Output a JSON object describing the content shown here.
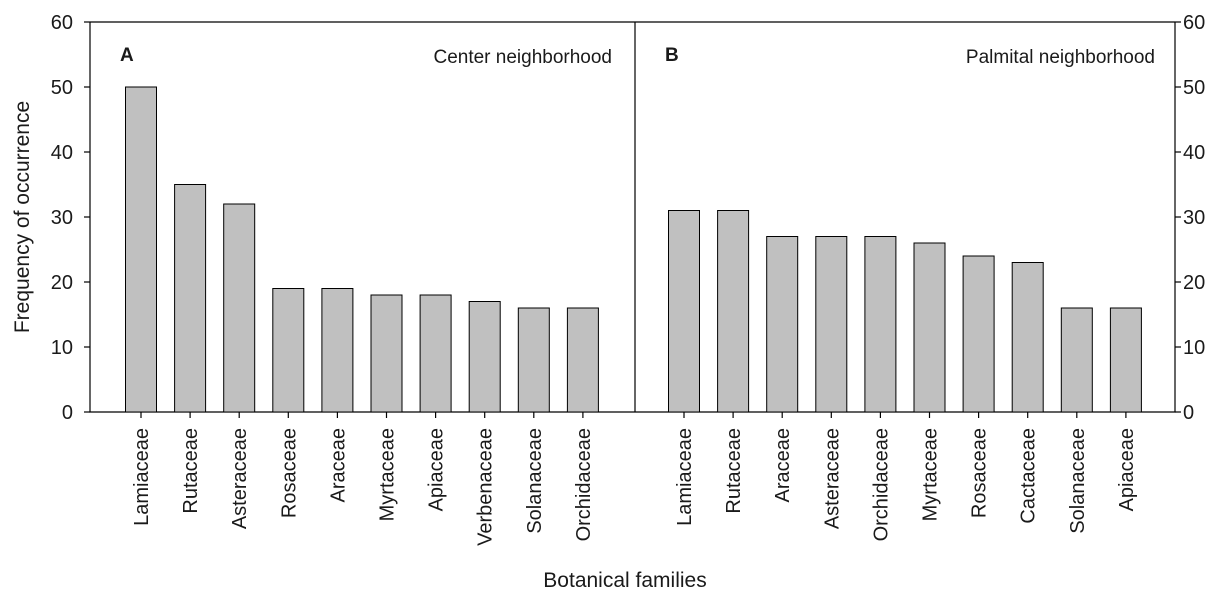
{
  "figure": {
    "y_axis_label": "Frequency of occurrence",
    "x_axis_label": "Botanical families",
    "bar_color": "#c0c0c0",
    "border_color": "#000000"
  },
  "chart_data": [
    {
      "type": "bar",
      "panel_label": "A",
      "title": "Center neighborhood",
      "categories": [
        "Lamiaceae",
        "Rutaceae",
        "Asteraceae",
        "Rosaceae",
        "Araceae",
        "Myrtaceae",
        "Apiaceae",
        "Verbenaceae",
        "Solanaceae",
        "Orchidaceae"
      ],
      "values": [
        50,
        35,
        32,
        19,
        19,
        18,
        18,
        17,
        16,
        16
      ],
      "xlabel": "Botanical families",
      "ylabel": "Frequency of occurrence",
      "ylim": [
        0,
        60
      ],
      "yticks": [
        0,
        10,
        20,
        30,
        40,
        50,
        60
      ],
      "y_axis_side": "left",
      "grid": false
    },
    {
      "type": "bar",
      "panel_label": "B",
      "title": "Palmital neighborhood",
      "categories": [
        "Lamiaceae",
        "Rutaceae",
        "Araceae",
        "Asteraceae",
        "Orchidaceae",
        "Myrtaceae",
        "Rosaceae",
        "Cactaceae",
        "Solanaceae",
        "Apiaceae"
      ],
      "values": [
        31,
        31,
        27,
        27,
        27,
        26,
        24,
        23,
        16,
        16
      ],
      "xlabel": "Botanical families",
      "ylim": [
        0,
        60
      ],
      "yticks": [
        0,
        10,
        20,
        30,
        40,
        50,
        60
      ],
      "y_axis_side": "right",
      "grid": false
    }
  ]
}
